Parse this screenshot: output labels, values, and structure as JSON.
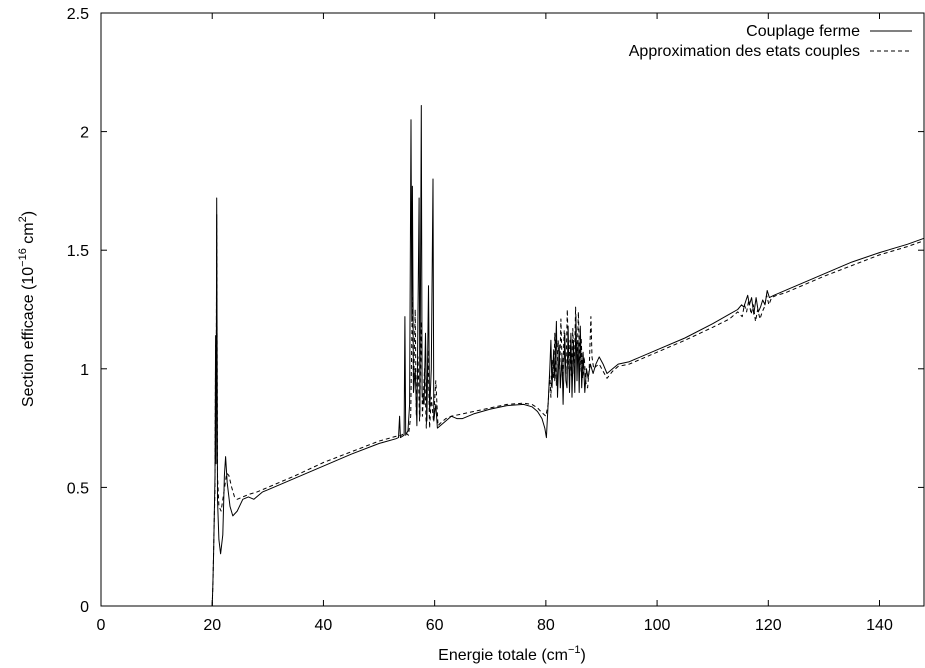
{
  "chart_data": {
    "type": "line",
    "title": "",
    "xlim": [
      0,
      148
    ],
    "ylim": [
      0,
      2.5
    ],
    "grid": false,
    "legend_position": "top-right",
    "xlabel": {
      "main": "Energie totale (cm",
      "sup": "−1",
      "close": ")"
    },
    "ylabel": {
      "main": "Section efficace (10",
      "sup": "−16",
      "mid": " cm",
      "sup2": "2",
      "close": ")"
    },
    "x_ticks": [
      {
        "value": 0,
        "label": "0"
      },
      {
        "value": 20,
        "label": "20"
      },
      {
        "value": 40,
        "label": "40"
      },
      {
        "value": 60,
        "label": "60"
      },
      {
        "value": 80,
        "label": "80"
      },
      {
        "value": 100,
        "label": "100"
      },
      {
        "value": 120,
        "label": "120"
      },
      {
        "value": 140,
        "label": "140"
      }
    ],
    "y_ticks": [
      {
        "value": 0,
        "label": "0"
      },
      {
        "value": 0.5,
        "label": "0.5"
      },
      {
        "value": 1,
        "label": "1"
      },
      {
        "value": 1.5,
        "label": "1.5"
      },
      {
        "value": 2,
        "label": "2"
      },
      {
        "value": 2.5,
        "label": "2.5"
      }
    ],
    "series": [
      {
        "name": "Couplage ferme",
        "style": "solid",
        "color": "#000000",
        "points": [
          [
            20.0,
            0.0
          ],
          [
            20.1,
            0.08
          ],
          [
            20.25,
            0.22
          ],
          [
            20.5,
            0.55
          ],
          [
            20.6,
            1.14
          ],
          [
            20.7,
            0.6
          ],
          [
            20.8,
            1.72
          ],
          [
            20.95,
            0.45
          ],
          [
            21.2,
            0.28
          ],
          [
            21.5,
            0.22
          ],
          [
            21.9,
            0.3
          ],
          [
            22.2,
            0.55
          ],
          [
            22.4,
            0.63
          ],
          [
            22.7,
            0.52
          ],
          [
            23.2,
            0.42
          ],
          [
            23.7,
            0.38
          ],
          [
            24.5,
            0.4
          ],
          [
            25.5,
            0.45
          ],
          [
            26.5,
            0.46
          ],
          [
            27.5,
            0.45
          ],
          [
            29.0,
            0.48
          ],
          [
            30.0,
            0.49
          ],
          [
            35.0,
            0.54
          ],
          [
            40.0,
            0.59
          ],
          [
            45.0,
            0.64
          ],
          [
            50.0,
            0.685
          ],
          [
            53.0,
            0.705
          ],
          [
            53.5,
            0.71
          ],
          [
            53.7,
            0.8
          ],
          [
            53.85,
            0.71
          ],
          [
            54.5,
            0.72
          ],
          [
            54.65,
            1.22
          ],
          [
            54.8,
            0.72
          ],
          [
            55.2,
            0.74
          ],
          [
            55.5,
            0.85
          ],
          [
            55.75,
            2.05
          ],
          [
            55.9,
            1.2
          ],
          [
            56.0,
            1.77
          ],
          [
            56.2,
            0.9
          ],
          [
            56.5,
            1.0
          ],
          [
            56.8,
            0.76
          ],
          [
            57.2,
            1.72
          ],
          [
            57.35,
            0.8
          ],
          [
            57.6,
            2.11
          ],
          [
            57.75,
            0.9
          ],
          [
            58.1,
            0.85
          ],
          [
            58.35,
            1.15
          ],
          [
            58.6,
            0.78
          ],
          [
            58.9,
            1.35
          ],
          [
            59.1,
            0.82
          ],
          [
            59.4,
            1.0
          ],
          [
            59.7,
            1.8
          ],
          [
            59.85,
            0.78
          ],
          [
            60.2,
            0.85
          ],
          [
            60.5,
            0.75
          ],
          [
            61.0,
            0.76
          ],
          [
            62.0,
            0.78
          ],
          [
            63.0,
            0.8
          ],
          [
            64.0,
            0.79
          ],
          [
            65.0,
            0.79
          ],
          [
            67.0,
            0.81
          ],
          [
            70.0,
            0.83
          ],
          [
            73.0,
            0.845
          ],
          [
            76.0,
            0.85
          ],
          [
            77.5,
            0.84
          ],
          [
            78.5,
            0.82
          ],
          [
            79.3,
            0.79
          ],
          [
            79.8,
            0.75
          ],
          [
            80.1,
            0.71
          ],
          [
            80.4,
            0.85
          ],
          [
            80.7,
            1.0
          ],
          [
            80.9,
            1.12
          ],
          [
            81.1,
            0.92
          ],
          [
            81.4,
            1.08
          ],
          [
            81.6,
            0.95
          ],
          [
            81.9,
            1.2
          ],
          [
            82.1,
            0.88
          ],
          [
            82.4,
            1.1
          ],
          [
            82.6,
            0.92
          ],
          [
            82.9,
            1.05
          ],
          [
            83.1,
            0.85
          ],
          [
            83.4,
            1.15
          ],
          [
            83.6,
            0.95
          ],
          [
            83.8,
            0.92
          ],
          [
            84.0,
            1.18
          ],
          [
            84.25,
            0.9
          ],
          [
            84.5,
            1.15
          ],
          [
            84.7,
            0.88
          ],
          [
            84.95,
            1.12
          ],
          [
            85.2,
            0.9
          ],
          [
            85.4,
            1.22
          ],
          [
            85.6,
            0.95
          ],
          [
            85.8,
            1.12
          ],
          [
            86.0,
            0.9
          ],
          [
            86.2,
            1.18
          ],
          [
            86.45,
            0.92
          ],
          [
            86.7,
            1.07
          ],
          [
            87.0,
            0.9
          ],
          [
            87.3,
            1.0
          ],
          [
            87.6,
            0.96
          ],
          [
            88.0,
            1.02
          ],
          [
            88.5,
            0.98
          ],
          [
            89.0,
            1.02
          ],
          [
            89.6,
            1.05
          ],
          [
            90.3,
            1.02
          ],
          [
            91.0,
            0.98
          ],
          [
            92.0,
            1.0
          ],
          [
            93.0,
            1.02
          ],
          [
            95.0,
            1.03
          ],
          [
            100.0,
            1.08
          ],
          [
            105.0,
            1.13
          ],
          [
            110.0,
            1.19
          ],
          [
            113.0,
            1.23
          ],
          [
            114.5,
            1.25
          ],
          [
            115.2,
            1.27
          ],
          [
            115.6,
            1.26
          ],
          [
            116.0,
            1.29
          ],
          [
            116.3,
            1.31
          ],
          [
            116.6,
            1.27
          ],
          [
            117.0,
            1.3
          ],
          [
            117.4,
            1.23
          ],
          [
            117.8,
            1.3
          ],
          [
            118.2,
            1.24
          ],
          [
            118.6,
            1.26
          ],
          [
            119.0,
            1.29
          ],
          [
            119.4,
            1.27
          ],
          [
            119.8,
            1.33
          ],
          [
            120.2,
            1.3
          ],
          [
            121.0,
            1.31
          ],
          [
            122.0,
            1.32
          ],
          [
            124.0,
            1.34
          ],
          [
            125.0,
            1.35
          ],
          [
            130.0,
            1.4
          ],
          [
            135.0,
            1.45
          ],
          [
            140.0,
            1.49
          ],
          [
            145.0,
            1.525
          ],
          [
            148.0,
            1.55
          ]
        ]
      },
      {
        "name": "Approximation des etats couples",
        "style": "dashed",
        "color": "#000000",
        "points": [
          [
            20.0,
            0.0
          ],
          [
            20.15,
            0.12
          ],
          [
            20.3,
            0.3
          ],
          [
            20.5,
            0.5
          ],
          [
            20.6,
            1.1
          ],
          [
            20.7,
            0.7
          ],
          [
            20.8,
            1.65
          ],
          [
            20.95,
            0.55
          ],
          [
            21.2,
            0.42
          ],
          [
            21.6,
            0.4
          ],
          [
            22.1,
            0.48
          ],
          [
            22.6,
            0.56
          ],
          [
            23.0,
            0.55
          ],
          [
            23.5,
            0.5
          ],
          [
            24.0,
            0.46
          ],
          [
            24.5,
            0.45
          ],
          [
            25.5,
            0.46
          ],
          [
            26.5,
            0.47
          ],
          [
            28.0,
            0.48
          ],
          [
            30.0,
            0.5
          ],
          [
            35.0,
            0.55
          ],
          [
            40.0,
            0.605
          ],
          [
            45.0,
            0.65
          ],
          [
            50.0,
            0.695
          ],
          [
            53.0,
            0.715
          ],
          [
            54.0,
            0.72
          ],
          [
            54.8,
            0.73
          ],
          [
            55.3,
            0.72
          ],
          [
            55.7,
            0.8
          ],
          [
            56.0,
            1.3
          ],
          [
            56.2,
            0.9
          ],
          [
            56.5,
            1.25
          ],
          [
            56.7,
            0.8
          ],
          [
            57.0,
            1.05
          ],
          [
            57.3,
            0.78
          ],
          [
            57.6,
            1.2
          ],
          [
            57.8,
            0.8
          ],
          [
            58.2,
            1.0
          ],
          [
            58.5,
            0.75
          ],
          [
            58.8,
            1.08
          ],
          [
            59.1,
            0.75
          ],
          [
            59.4,
            0.88
          ],
          [
            59.8,
            0.78
          ],
          [
            60.2,
            0.95
          ],
          [
            60.6,
            0.76
          ],
          [
            61.0,
            0.77
          ],
          [
            61.5,
            0.78
          ],
          [
            62.0,
            0.79
          ],
          [
            63.0,
            0.8
          ],
          [
            65.0,
            0.81
          ],
          [
            67.0,
            0.82
          ],
          [
            70.0,
            0.835
          ],
          [
            73.0,
            0.85
          ],
          [
            76.0,
            0.855
          ],
          [
            77.5,
            0.85
          ],
          [
            78.5,
            0.835
          ],
          [
            79.3,
            0.815
          ],
          [
            80.0,
            0.8
          ],
          [
            80.4,
            0.85
          ],
          [
            80.7,
            0.97
          ],
          [
            80.9,
            0.88
          ],
          [
            81.1,
            1.04
          ],
          [
            81.4,
            0.96
          ],
          [
            81.6,
            1.15
          ],
          [
            81.9,
            0.93
          ],
          [
            82.2,
            1.12
          ],
          [
            82.5,
            1.0
          ],
          [
            82.7,
            1.21
          ],
          [
            83.0,
            0.96
          ],
          [
            83.3,
            1.16
          ],
          [
            83.6,
            0.98
          ],
          [
            83.85,
            1.25
          ],
          [
            84.1,
            1.0
          ],
          [
            84.35,
            1.12
          ],
          [
            84.6,
            0.97
          ],
          [
            84.85,
            1.17
          ],
          [
            85.1,
            0.98
          ],
          [
            85.35,
            1.26
          ],
          [
            85.6,
            1.02
          ],
          [
            85.85,
            1.24
          ],
          [
            86.1,
            0.99
          ],
          [
            86.35,
            1.13
          ],
          [
            86.6,
            0.96
          ],
          [
            86.9,
            1.05
          ],
          [
            87.2,
            0.94
          ],
          [
            87.5,
            0.92
          ],
          [
            87.8,
            1.0
          ],
          [
            88.1,
            1.22
          ],
          [
            88.3,
            1.05
          ],
          [
            88.6,
            1.0
          ],
          [
            89.0,
            1.01
          ],
          [
            89.6,
            1.02
          ],
          [
            90.3,
            0.99
          ],
          [
            91.0,
            0.96
          ],
          [
            92.0,
            0.99
          ],
          [
            93.0,
            1.01
          ],
          [
            95.0,
            1.02
          ],
          [
            100.0,
            1.07
          ],
          [
            105.0,
            1.12
          ],
          [
            110.0,
            1.175
          ],
          [
            113.0,
            1.21
          ],
          [
            114.5,
            1.24
          ],
          [
            115.3,
            1.22
          ],
          [
            115.7,
            1.27
          ],
          [
            116.1,
            1.24
          ],
          [
            116.5,
            1.29
          ],
          [
            116.9,
            1.23
          ],
          [
            117.3,
            1.27
          ],
          [
            117.7,
            1.2
          ],
          [
            118.1,
            1.25
          ],
          [
            118.5,
            1.21
          ],
          [
            118.9,
            1.24
          ],
          [
            119.3,
            1.26
          ],
          [
            119.7,
            1.31
          ],
          [
            120.1,
            1.27
          ],
          [
            120.6,
            1.3
          ],
          [
            121.5,
            1.31
          ],
          [
            123.0,
            1.32
          ],
          [
            125.0,
            1.34
          ],
          [
            130.0,
            1.39
          ],
          [
            135.0,
            1.435
          ],
          [
            140.0,
            1.48
          ],
          [
            145.0,
            1.515
          ],
          [
            148.0,
            1.54
          ]
        ]
      }
    ]
  }
}
